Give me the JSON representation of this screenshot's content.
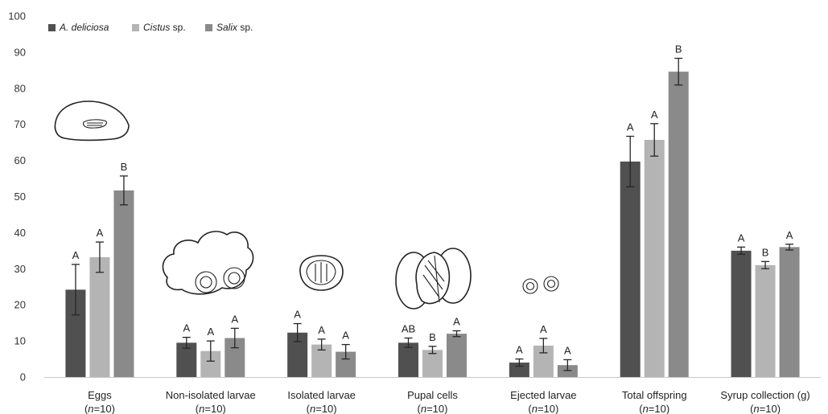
{
  "chart_data": {
    "type": "bar",
    "title": "",
    "xlabel": "",
    "ylabel": "",
    "ylim": [
      0,
      100
    ],
    "yticks": [
      0,
      10,
      20,
      30,
      40,
      50,
      60,
      70,
      80,
      90,
      100
    ],
    "grid": false,
    "legend_position": "top-left",
    "categories": [
      {
        "label": "Eggs",
        "n": "(n=10)"
      },
      {
        "label": "Non-isolated larvae",
        "n": "(n=10)"
      },
      {
        "label": "Isolated larvae",
        "n": "(n=10)"
      },
      {
        "label": "Pupal cells",
        "n": "(n=10)"
      },
      {
        "label": "Ejected larvae",
        "n": "(n=10)"
      },
      {
        "label": "Total offspring",
        "n": "(n=10)"
      },
      {
        "label": "Syrup collection (g)",
        "n": "(n=10)"
      }
    ],
    "series": [
      {
        "name": "A. deliciosa",
        "name_italic": "A. deliciosa",
        "name_suffix": "",
        "color": "#505050",
        "values": [
          24.2,
          9.5,
          12.3,
          9.5,
          4.0,
          59.7,
          35.0
        ],
        "errors": [
          7.0,
          1.5,
          2.5,
          1.3,
          1.0,
          7.0,
          1.0
        ],
        "letters": [
          "A",
          "A",
          "A",
          "AB",
          "A",
          "A",
          "A"
        ]
      },
      {
        "name": "Cistus sp.",
        "name_italic": "Cistus",
        "name_suffix": " sp.",
        "color": "#b4b4b4",
        "values": [
          33.2,
          7.2,
          9.0,
          7.5,
          8.7,
          65.7,
          31.0
        ],
        "errors": [
          4.2,
          2.8,
          1.5,
          1.0,
          2.0,
          4.5,
          1.0
        ],
        "letters": [
          "A",
          "A",
          "A",
          "B",
          "A",
          "A",
          "B"
        ]
      },
      {
        "name": "Salix sp.",
        "name_italic": "Salix",
        "name_suffix": " sp.",
        "color": "#8a8a8a",
        "values": [
          51.7,
          10.8,
          7.0,
          12.0,
          3.3,
          84.6,
          36.0
        ],
        "errors": [
          4.0,
          2.7,
          2.0,
          0.8,
          1.5,
          3.7,
          0.8
        ],
        "letters": [
          "B",
          "A",
          "A",
          "A",
          "A",
          "B",
          "A"
        ]
      }
    ]
  }
}
